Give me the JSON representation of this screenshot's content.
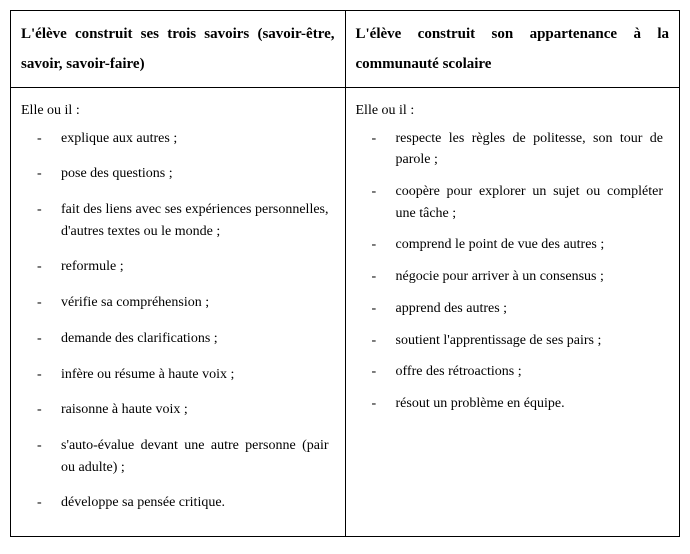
{
  "table": {
    "headers": {
      "left": "L'élève construit ses trois savoirs (savoir-être, savoir, savoir-faire)",
      "right": "L'élève construit son appartenance à la communauté scolaire"
    },
    "intro": "Elle ou il :",
    "left_items": [
      "explique aux autres ;",
      "pose des questions ;",
      "fait des liens avec ses expériences personnelles, d'autres textes ou le monde ;",
      "reformule ;",
      "vérifie sa compréhension ;",
      "demande des clarifications ;",
      "infère ou résume à haute voix ;",
      "raisonne à haute voix ;",
      "s'auto-évalue devant une autre personne (pair ou adulte) ;",
      "développe sa pensée critique."
    ],
    "right_items": [
      "respecte les règles de politesse, son tour de parole ;",
      "coopère pour explorer un sujet ou compléter une tâche ;",
      "comprend le point de vue des autres ;",
      "négocie pour arriver à un consensus ;",
      "apprend des autres ;",
      "soutient l'apprentissage de ses pairs ;",
      "offre des rétroactions ;",
      "résout un problème en équipe."
    ]
  }
}
